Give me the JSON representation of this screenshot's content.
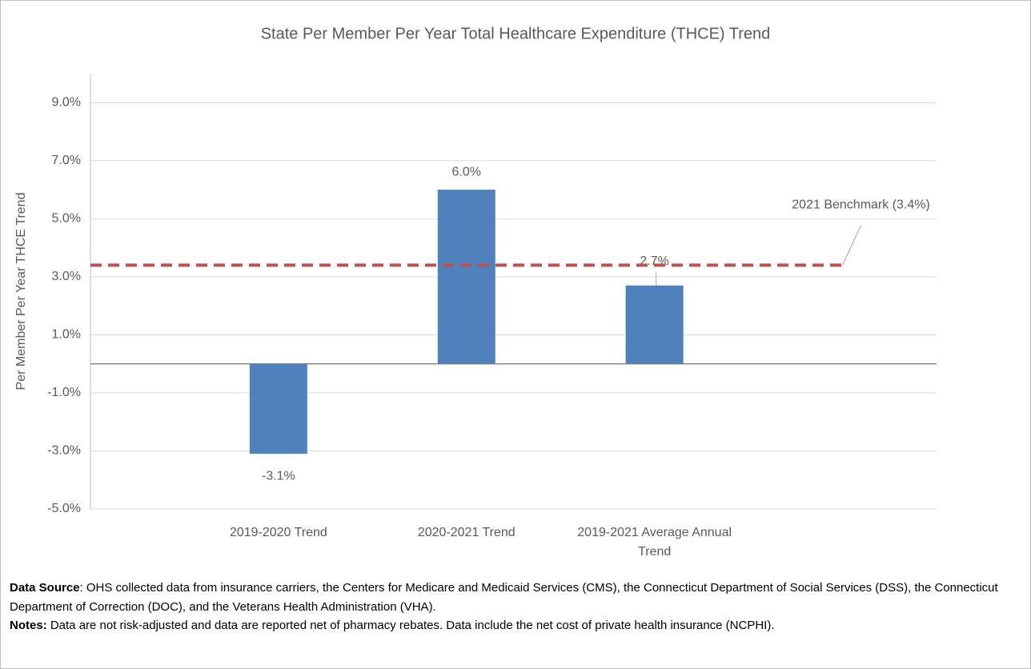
{
  "chart_data": {
    "type": "bar",
    "title": "State Per Member Per Year Total Healthcare Expenditure (THCE) Trend",
    "y_axis_label": "Per Member Per Year THCE Trend",
    "categories": [
      "2019-2020 Trend",
      "2020-2021 Trend",
      "2019-2021 Average Annual Trend"
    ],
    "values": [
      -3.1,
      6.0,
      2.7
    ],
    "value_labels": [
      "-3.1%",
      "6.0%",
      "2.7%"
    ],
    "color": "#4f81bd",
    "ylim": [
      -5,
      10
    ],
    "yticks": [
      {
        "value": -5,
        "label": "-5.0%"
      },
      {
        "value": -3,
        "label": "-3.0%"
      },
      {
        "value": -1,
        "label": "-1.0%"
      },
      {
        "value": 1,
        "label": "1.0%"
      },
      {
        "value": 3,
        "label": "3.0%"
      },
      {
        "value": 5,
        "label": "5.0%"
      },
      {
        "value": 7,
        "label": "7.0%"
      },
      {
        "value": 9,
        "label": "9.0%"
      }
    ],
    "grid": true,
    "reference_line": {
      "value": 3.4,
      "label": "2021 Benchmark (3.4%)",
      "color": "#c0504d",
      "style": "dashed"
    }
  },
  "footer": {
    "data_source_label": "Data Source",
    "data_source": ":  OHS collected data from insurance carriers, the Centers for Medicare and Medicaid Services (CMS), the Connecticut Department of Social Services (DSS), the Connecticut Department of Correction (DOC), and the Veterans Health Administration (VHA).",
    "notes_label": "Notes:",
    "notes": "  Data are not risk-adjusted and data are reported net of pharmacy rebates.  Data include the net cost of private health insurance (NCPHI)."
  }
}
